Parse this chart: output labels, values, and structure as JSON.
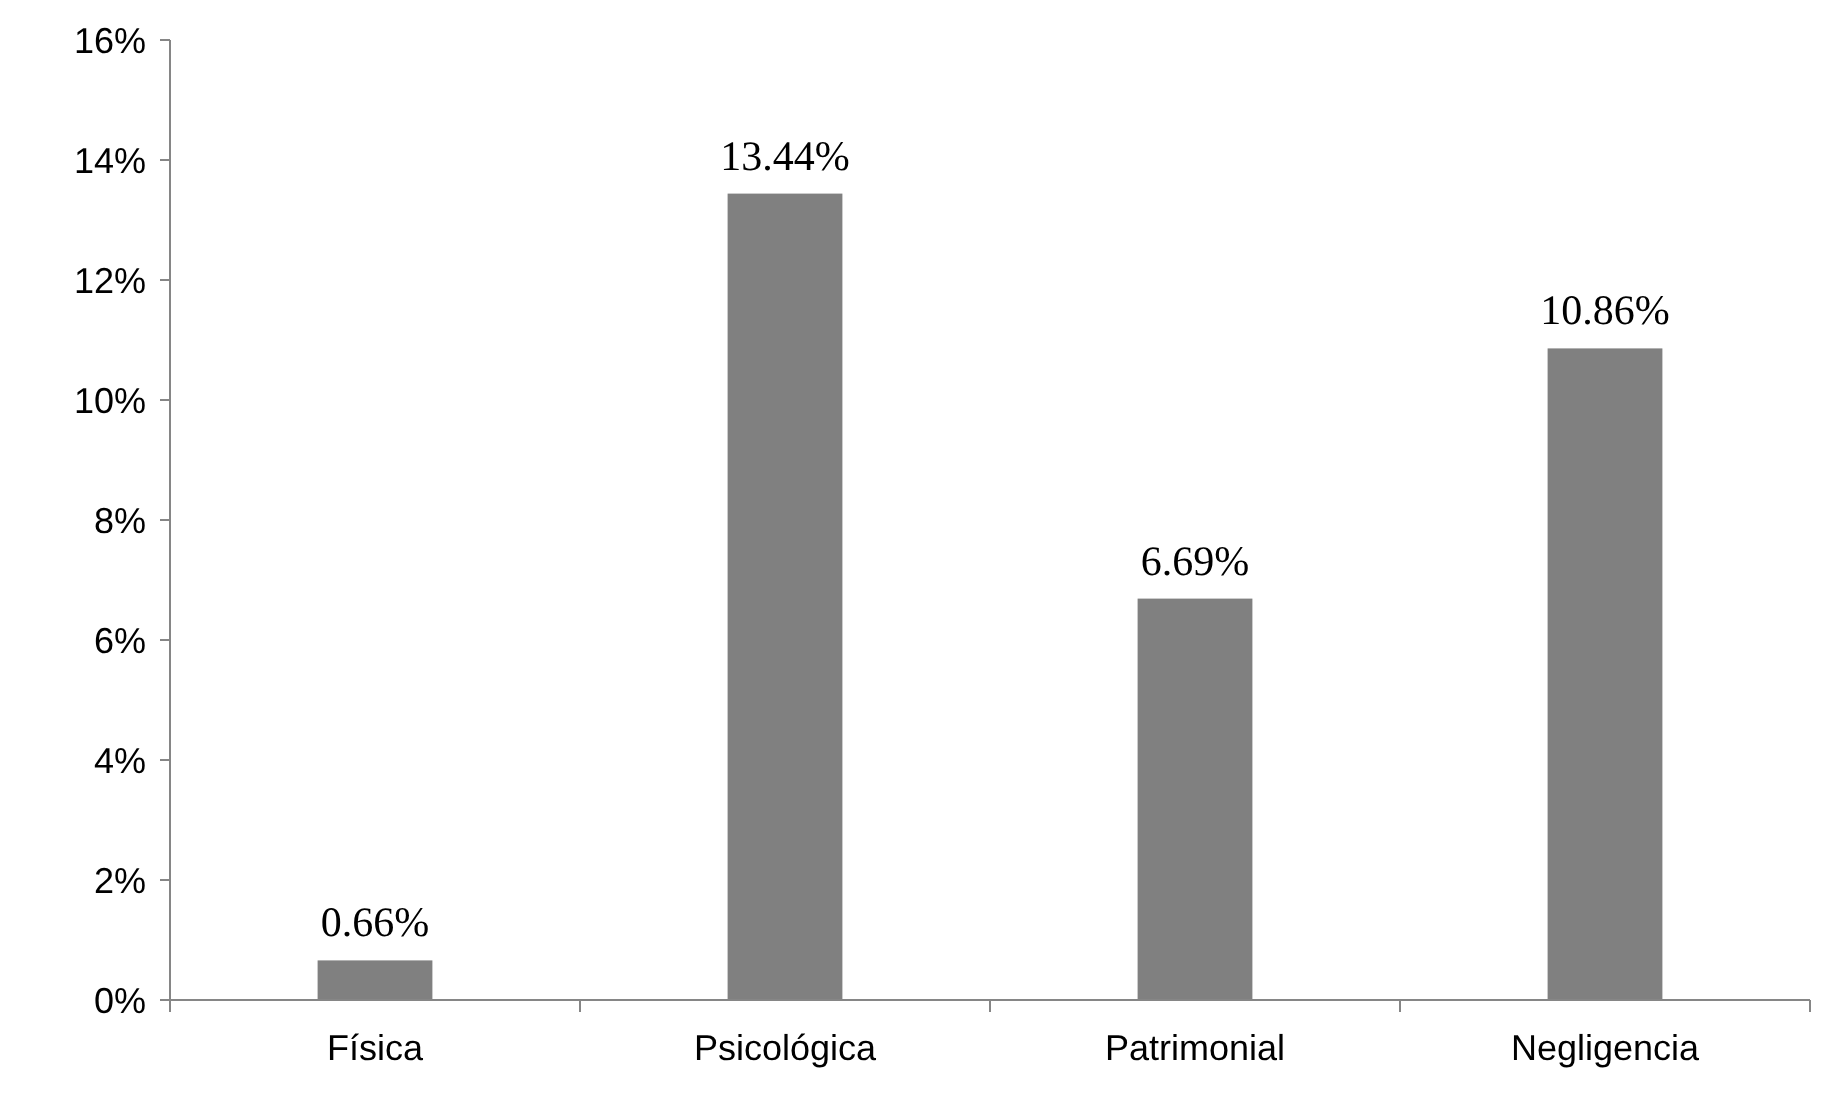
{
  "chart_data": {
    "type": "bar",
    "categories": [
      "Física",
      "Psicológica",
      "Patrimonial",
      "Negligencia"
    ],
    "values": [
      0.66,
      13.44,
      6.69,
      10.86
    ],
    "color": "#808080",
    "value_labels": [
      "0.66%",
      "13.44%",
      "6.69%",
      "10.86%"
    ],
    "ylim": [
      0,
      16
    ],
    "yticks": [
      {
        "value": 0,
        "label": "0%"
      },
      {
        "value": 2,
        "label": "2%"
      },
      {
        "value": 4,
        "label": "4%"
      },
      {
        "value": 6,
        "label": "6%"
      },
      {
        "value": 8,
        "label": "8%"
      },
      {
        "value": 10,
        "label": "10%"
      },
      {
        "value": 12,
        "label": "12%"
      },
      {
        "value": 14,
        "label": "14%"
      },
      {
        "value": 16,
        "label": "16%"
      }
    ],
    "grid": false
  }
}
